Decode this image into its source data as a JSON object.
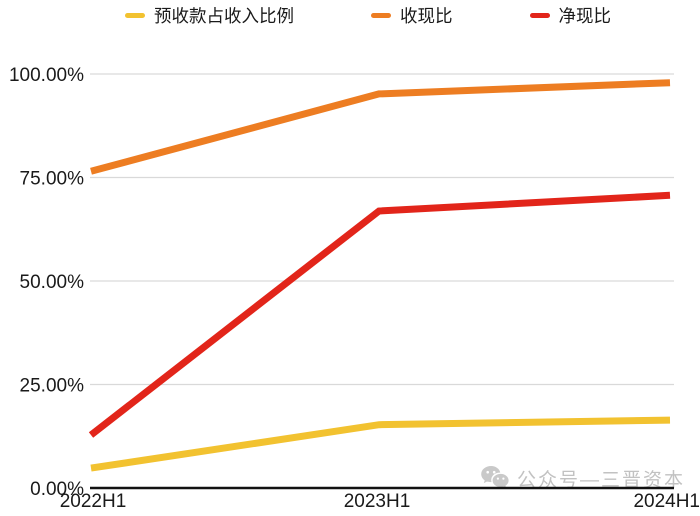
{
  "chart_data": {
    "type": "line",
    "categories": [
      "2022H1",
      "2023H1",
      "2024H1"
    ],
    "series": [
      {
        "key": "prepayment-to-revenue-ratio",
        "name": "预收款占收入比例",
        "color": "#F2C230",
        "values": [
          4.8,
          15.3,
          16.4
        ]
      },
      {
        "key": "cash-collection-ratio",
        "name": "收现比",
        "color": "#ED7D22",
        "values": [
          76.5,
          95.2,
          97.9
        ]
      },
      {
        "key": "net-cash-ratio",
        "name": "净现比",
        "color": "#E2251A",
        "values": [
          12.8,
          66.9,
          70.7
        ]
      }
    ],
    "title": "",
    "xlabel": "",
    "ylabel": "",
    "ylim": [
      0,
      100
    ],
    "yticks": [
      {
        "value": 0,
        "label": "0.00%"
      },
      {
        "value": 25,
        "label": "25.00%"
      },
      {
        "value": 50,
        "label": "50.00%"
      },
      {
        "value": 75,
        "label": "75.00%"
      },
      {
        "value": 100,
        "label": "100.00%"
      }
    ],
    "grid": true,
    "legend_position": "top"
  },
  "colors": {
    "background": "#FFFFFF",
    "gridline": "#D9D9D9",
    "axis_line": "#111111",
    "tick_text": "#1A1A1A",
    "watermark": "#C2C2C2"
  },
  "watermark": {
    "icon": "wechat-icon",
    "text": "公众号—三晋资本"
  }
}
